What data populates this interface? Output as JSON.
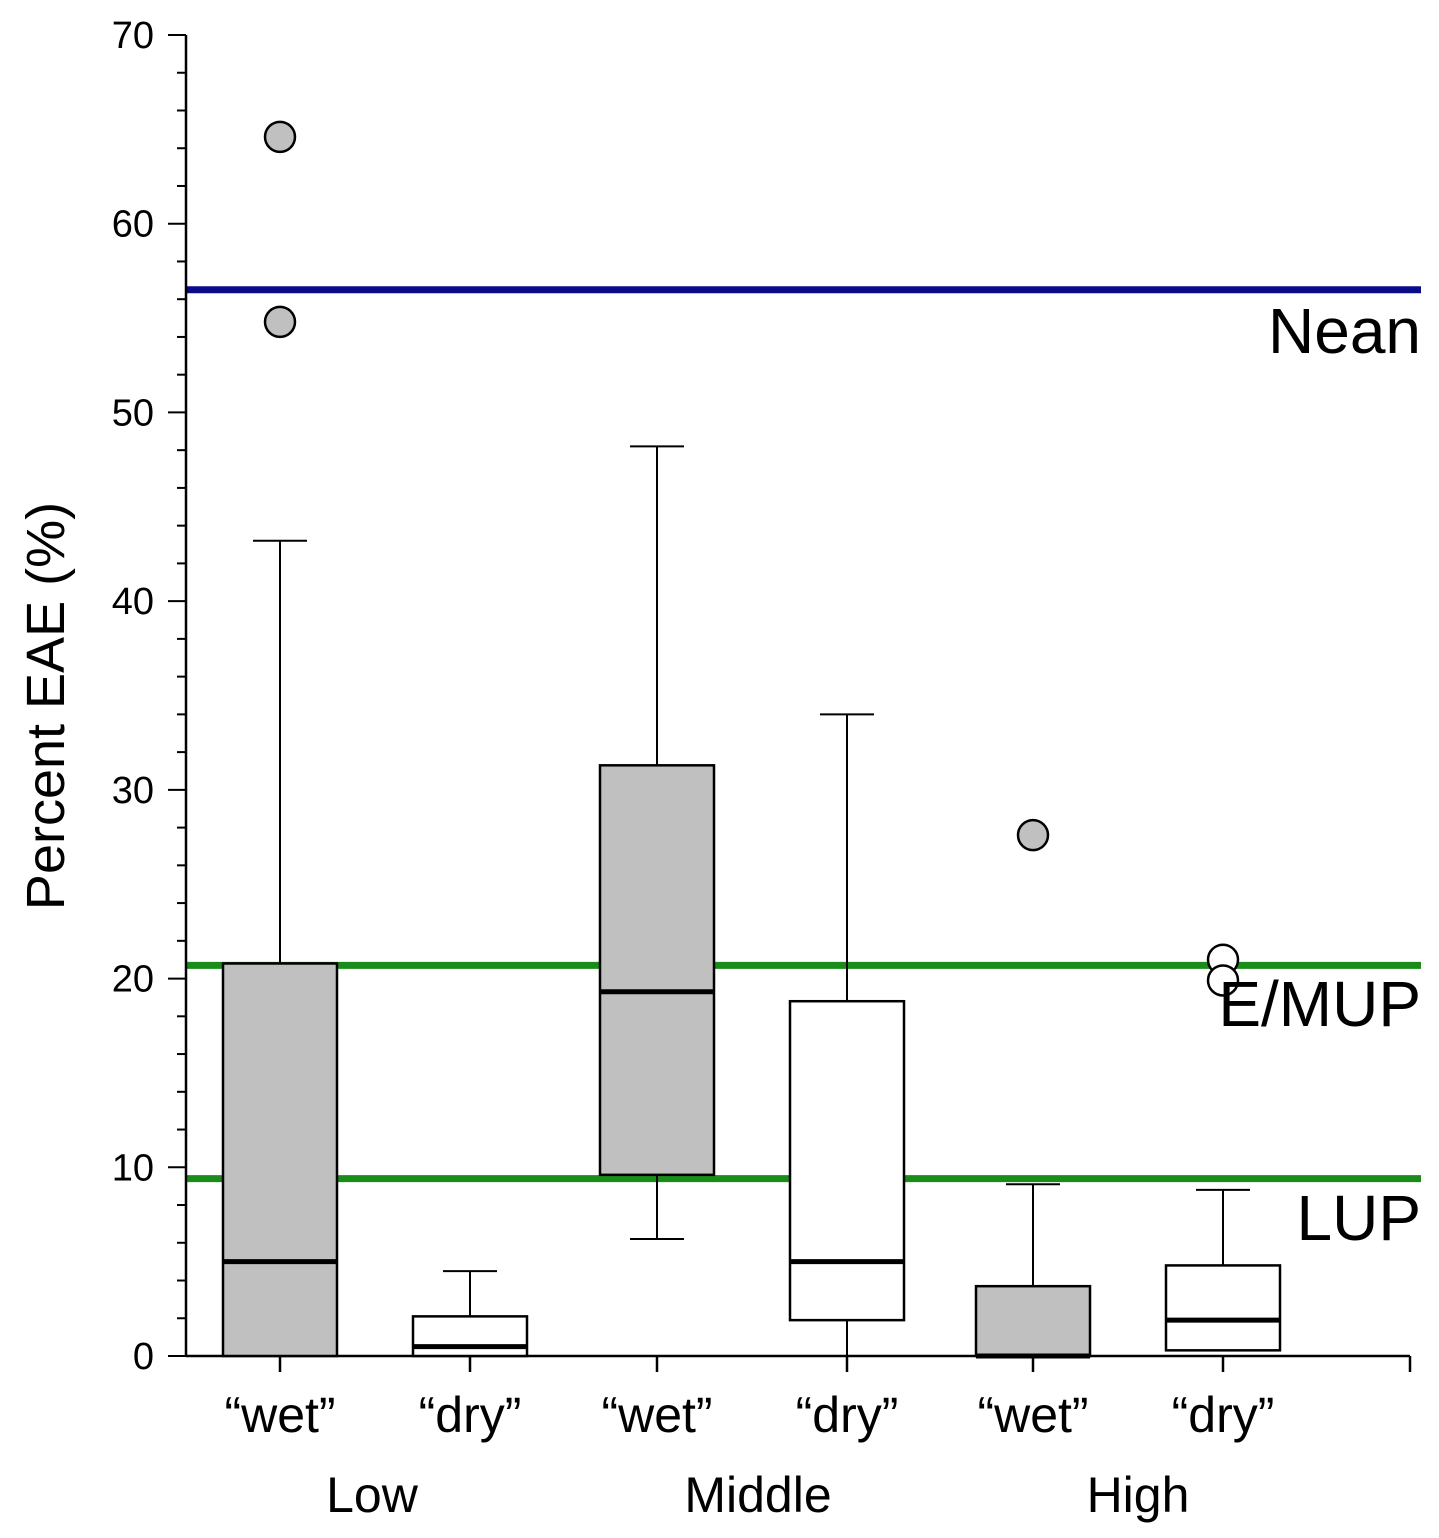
{
  "chart_data": {
    "type": "box",
    "ylabel": "Percent EAE (%)",
    "ylim": [
      0,
      70
    ],
    "y_ticks": [
      0,
      10,
      20,
      30,
      40,
      50,
      60,
      70
    ],
    "y_tick_labels": [
      "0",
      "10",
      "20",
      "30",
      "40",
      "50",
      "60",
      "70"
    ],
    "categories": [
      "“wet”",
      "“dry”",
      "“wet”",
      "“dry”",
      "“wet”",
      "“dry”"
    ],
    "groups": [
      {
        "label": "Low",
        "categories": [
          0,
          1
        ]
      },
      {
        "label": "Middle",
        "categories": [
          2,
          3
        ]
      },
      {
        "label": "High",
        "categories": [
          4,
          5
        ]
      }
    ],
    "boxes": [
      {
        "category": "“wet”",
        "group": "Low",
        "fill": "#c0c0c0",
        "whisker_low": 0,
        "q1": 0,
        "median": 5.0,
        "q3": 20.8,
        "whisker_high": 43.2,
        "outliers": [
          64.6,
          54.8
        ]
      },
      {
        "category": "“dry”",
        "group": "Low",
        "fill": "#ffffff",
        "whisker_low": 0,
        "q1": 0,
        "median": 0.5,
        "q3": 2.1,
        "whisker_high": 4.5,
        "outliers": []
      },
      {
        "category": "“wet”",
        "group": "Middle",
        "fill": "#c0c0c0",
        "whisker_low": 6.2,
        "q1": 9.6,
        "median": 19.3,
        "q3": 31.3,
        "whisker_high": 48.2,
        "outliers": []
      },
      {
        "category": "“dry”",
        "group": "Middle",
        "fill": "#ffffff",
        "whisker_low": 0,
        "q1": 1.9,
        "median": 5.0,
        "q3": 18.8,
        "whisker_high": 34.0,
        "outliers": []
      },
      {
        "category": "“wet”",
        "group": "High",
        "fill": "#c0c0c0",
        "whisker_low": 0,
        "q1": 0,
        "median": 0,
        "q3": 3.7,
        "whisker_high": 9.1,
        "outliers": [
          27.6
        ]
      },
      {
        "category": "“dry”",
        "group": "High",
        "fill": "#ffffff",
        "whisker_low": 0.3,
        "q1": 0.3,
        "median": 1.9,
        "q3": 4.8,
        "whisker_high": 8.8,
        "outliers": [
          21.0,
          19.9
        ]
      }
    ],
    "reference_lines": [
      {
        "label": "Nean",
        "value": 56.5,
        "color": "#0a0a8c"
      },
      {
        "label": "E/MUP",
        "value": 20.7,
        "color": "#1a8c1a"
      },
      {
        "label": "LUP",
        "value": 9.4,
        "color": "#1a8c1a"
      }
    ],
    "grid": false,
    "legend": "none"
  }
}
